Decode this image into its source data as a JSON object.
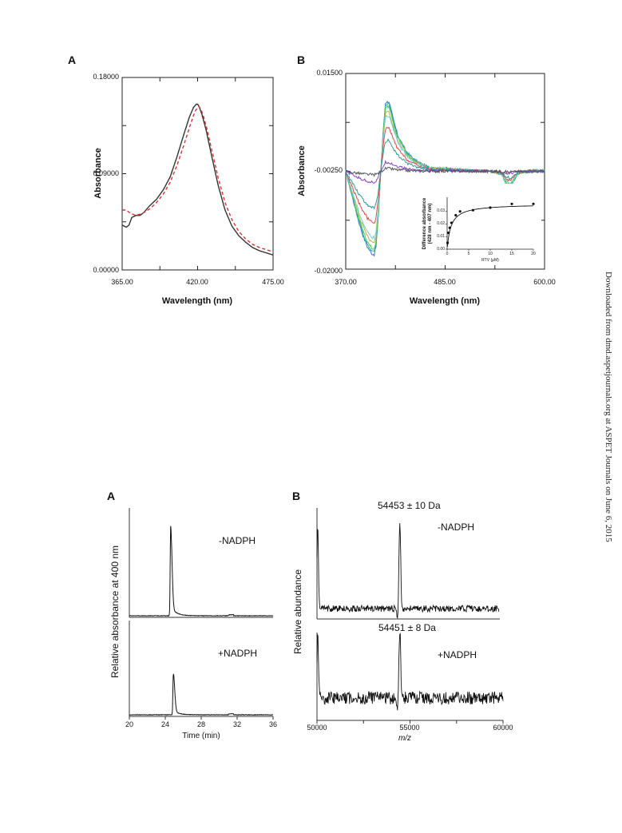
{
  "sidebar_text": "Downloaded from dmd.aspetjournals.org at ASPET Journals on June 6, 2015",
  "chart_data": [
    {
      "id": "fig1A",
      "type": "line",
      "panel_label": "A",
      "xlabel": "Wavelength (nm)",
      "ylabel": "Absorbance",
      "xlim": [
        365,
        475
      ],
      "ylim": [
        0,
        0.18
      ],
      "x_ticks": [
        "365.00",
        "420.00",
        "475.00"
      ],
      "y_ticks": [
        "0.00000",
        "0.09000",
        "0.18000"
      ],
      "series": [
        {
          "color": "#333333",
          "style": "solid",
          "x": [
            365,
            368,
            370,
            372,
            375,
            378,
            381,
            385,
            390,
            395,
            400,
            405,
            410,
            414,
            417,
            419,
            420,
            421,
            423,
            426,
            430,
            435,
            440,
            445,
            450,
            455,
            460,
            465,
            470,
            475
          ],
          "y": [
            0.042,
            0.04,
            0.042,
            0.049,
            0.051,
            0.051,
            0.054,
            0.06,
            0.066,
            0.075,
            0.087,
            0.106,
            0.127,
            0.143,
            0.152,
            0.155,
            0.155,
            0.153,
            0.146,
            0.132,
            0.108,
            0.079,
            0.056,
            0.041,
            0.032,
            0.026,
            0.021,
            0.018,
            0.016,
            0.014
          ]
        },
        {
          "color": "#e03030",
          "style": "dashed",
          "x": [
            365,
            368,
            371,
            375,
            380,
            385,
            390,
            395,
            400,
            405,
            410,
            415,
            418,
            420,
            421,
            422,
            424,
            427,
            430,
            435,
            440,
            445,
            450,
            455,
            460,
            465,
            470,
            475
          ],
          "y": [
            0.056,
            0.056,
            0.053,
            0.051,
            0.053,
            0.057,
            0.063,
            0.071,
            0.082,
            0.098,
            0.117,
            0.137,
            0.148,
            0.152,
            0.153,
            0.151,
            0.145,
            0.131,
            0.114,
            0.086,
            0.063,
            0.047,
            0.036,
            0.029,
            0.024,
            0.021,
            0.019,
            0.017
          ]
        }
      ]
    },
    {
      "id": "fig1B",
      "type": "line",
      "panel_label": "B",
      "xlabel": "Wavelength (nm)",
      "ylabel": "Absorbance",
      "xlim": [
        370,
        600
      ],
      "ylim": [
        -0.02,
        0.015
      ],
      "x_ticks": [
        "370.00",
        "485.00",
        "600.00"
      ],
      "y_ticks": [
        "-0.02000",
        "-0.00250",
        "0.01500"
      ],
      "series": [
        {
          "color": "#3b6fd8",
          "amp": 1.0
        },
        {
          "color": "#16b8a8",
          "amp": 0.97
        },
        {
          "color": "#4ec94e",
          "amp": 0.93
        },
        {
          "color": "#b9b13a",
          "amp": 0.86
        },
        {
          "color": "#6fd3e3",
          "amp": 0.8
        },
        {
          "color": "#e04848",
          "amp": 0.62
        },
        {
          "color": "#2a9c9c",
          "amp": 0.44
        },
        {
          "color": "#8844cc",
          "amp": 0.13
        },
        {
          "color": "#555555",
          "amp": 0.04
        }
      ],
      "base_shape": {
        "x": [
          370,
          375,
          380,
          385,
          390,
          395,
          400,
          403,
          405,
          408,
          410,
          413,
          416,
          420,
          425,
          430,
          440,
          450,
          460,
          470,
          485,
          500,
          520,
          540,
          550,
          555,
          560,
          565,
          570,
          580,
          590,
          600
        ],
        "y": [
          -0.0025,
          -0.0055,
          -0.0085,
          -0.0115,
          -0.014,
          -0.016,
          -0.0172,
          -0.0174,
          -0.016,
          -0.01,
          -0.004,
          0.004,
          0.0098,
          0.01,
          0.0068,
          0.004,
          0.001,
          -0.0005,
          -0.0014,
          -0.002,
          -0.002,
          -0.0022,
          -0.0024,
          -0.0025,
          -0.003,
          -0.0045,
          -0.0052,
          -0.004,
          -0.0028,
          -0.0025,
          -0.0024,
          -0.0024
        ]
      },
      "inset": {
        "type": "scatter",
        "ylabel": "Difference absorbance\n(428 nm - 407 nm)",
        "xlabel": "RTV (µM)",
        "xlim": [
          0,
          20
        ],
        "ylim": [
          0,
          0.04
        ],
        "x_ticks": [
          "0",
          "5",
          "10",
          "15",
          "20"
        ],
        "y_ticks": [
          "0.00",
          "0.01",
          "0.02",
          "0.03"
        ],
        "points_x": [
          0.1,
          0.3,
          0.6,
          1.0,
          2.0,
          3.0,
          6.0,
          10.0,
          15.0,
          20.0
        ],
        "points_y": [
          0.005,
          0.013,
          0.017,
          0.021,
          0.027,
          0.03,
          0.031,
          0.033,
          0.036,
          0.036
        ]
      }
    },
    {
      "id": "fig2A",
      "type": "line",
      "panel_label": "A",
      "xlabel": "Time (min)",
      "ylabel": "Relative absorbance at 400 nm",
      "xlim": [
        20,
        36
      ],
      "x_ticks": [
        "20",
        "24",
        "28",
        "32",
        "36"
      ],
      "traces": [
        {
          "label": "-NADPH",
          "peak_x": 24.6,
          "peak_height": 1.0
        },
        {
          "label": "+NADPH",
          "peak_x": 24.9,
          "peak_height": 0.45
        }
      ]
    },
    {
      "id": "fig2B",
      "type": "line",
      "panel_label": "B",
      "xlabel": "m/z",
      "ylabel": "Relative abundance",
      "xlim": [
        50000,
        60000
      ],
      "x_ticks": [
        "50000",
        "55000",
        "60000"
      ],
      "traces": [
        {
          "label": "-NADPH",
          "mass": "54453 ± 10  Da",
          "peak_x": 54453
        },
        {
          "label": "+NADPH",
          "mass": "54451 ± 8  Da",
          "peak_x": 54451
        }
      ]
    }
  ]
}
